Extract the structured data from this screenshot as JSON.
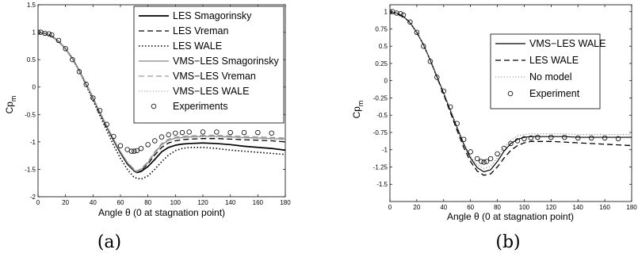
{
  "chart_data": [
    {
      "type": "line",
      "panel_label": "(a)",
      "xlabel": "Angle θ (0 at stagnation point)",
      "ylabel": "Cp",
      "ylabel_sub": "m",
      "xlim": [
        0,
        180
      ],
      "ylim": [
        -2,
        1.5
      ],
      "xticks": [
        "0",
        "20",
        "40",
        "60",
        "80",
        "100",
        "120",
        "140",
        "160",
        "180"
      ],
      "yticks": [
        "-2",
        "-1.5",
        "-1",
        "-0.5",
        "0",
        "0.5",
        "1",
        "1.5"
      ],
      "grid": false,
      "legend_position": "top-right",
      "series": [
        {
          "name": "LES Smagorinsky",
          "color": "#000000",
          "style": "solid-bold",
          "x": [
            0,
            5,
            10,
            15,
            20,
            25,
            30,
            35,
            40,
            45,
            50,
            55,
            60,
            65,
            70,
            72,
            75,
            80,
            85,
            90,
            95,
            100,
            105,
            110,
            120,
            130,
            140,
            150,
            160,
            170,
            180
          ],
          "y": [
            1.0,
            0.98,
            0.93,
            0.83,
            0.7,
            0.52,
            0.3,
            0.05,
            -0.2,
            -0.47,
            -0.72,
            -0.97,
            -1.2,
            -1.4,
            -1.53,
            -1.56,
            -1.54,
            -1.45,
            -1.32,
            -1.18,
            -1.1,
            -1.06,
            -1.04,
            -1.03,
            -1.02,
            -1.03,
            -1.05,
            -1.08,
            -1.1,
            -1.12,
            -1.15
          ]
        },
        {
          "name": "LES Vreman",
          "color": "#000000",
          "style": "dashed",
          "x": [
            0,
            5,
            10,
            15,
            20,
            25,
            30,
            35,
            40,
            45,
            50,
            55,
            60,
            65,
            70,
            72,
            75,
            80,
            85,
            90,
            95,
            100,
            105,
            110,
            120,
            130,
            140,
            150,
            160,
            170,
            180
          ],
          "y": [
            1.0,
            0.98,
            0.93,
            0.83,
            0.7,
            0.52,
            0.3,
            0.05,
            -0.2,
            -0.47,
            -0.72,
            -0.97,
            -1.2,
            -1.4,
            -1.53,
            -1.55,
            -1.52,
            -1.4,
            -1.24,
            -1.1,
            -1.02,
            -0.98,
            -0.96,
            -0.95,
            -0.94,
            -0.94,
            -0.95,
            -0.96,
            -0.97,
            -0.98,
            -1.0
          ]
        },
        {
          "name": "LES WALE",
          "color": "#000000",
          "style": "dotted-bold",
          "x": [
            0,
            5,
            10,
            15,
            20,
            25,
            30,
            35,
            40,
            45,
            50,
            55,
            60,
            65,
            70,
            75,
            80,
            85,
            90,
            95,
            100,
            105,
            110,
            120,
            130,
            140,
            150,
            160,
            170,
            180
          ],
          "y": [
            1.0,
            0.98,
            0.93,
            0.83,
            0.7,
            0.52,
            0.3,
            0.03,
            -0.24,
            -0.52,
            -0.79,
            -1.06,
            -1.3,
            -1.5,
            -1.65,
            -1.68,
            -1.62,
            -1.5,
            -1.36,
            -1.24,
            -1.16,
            -1.12,
            -1.1,
            -1.1,
            -1.12,
            -1.15,
            -1.17,
            -1.19,
            -1.21,
            -1.23
          ]
        },
        {
          "name": "VMS−LES Smagorinsky",
          "color": "#888888",
          "style": "solid",
          "x": [
            0,
            5,
            10,
            15,
            20,
            25,
            30,
            35,
            40,
            45,
            50,
            55,
            60,
            65,
            70,
            72,
            75,
            80,
            85,
            90,
            95,
            100,
            105,
            110,
            120,
            130,
            140,
            150,
            160,
            170,
            180
          ],
          "y": [
            1.0,
            0.98,
            0.93,
            0.83,
            0.7,
            0.52,
            0.3,
            0.05,
            -0.2,
            -0.46,
            -0.71,
            -0.95,
            -1.18,
            -1.38,
            -1.52,
            -1.55,
            -1.51,
            -1.38,
            -1.2,
            -1.05,
            -0.97,
            -0.93,
            -0.92,
            -0.91,
            -0.9,
            -0.9,
            -0.91,
            -0.92,
            -0.93,
            -0.94,
            -0.95
          ]
        },
        {
          "name": "VMS−LES Vreman",
          "color": "#999999",
          "style": "dashed",
          "x": [
            0,
            5,
            10,
            15,
            20,
            25,
            30,
            35,
            40,
            45,
            50,
            55,
            60,
            65,
            70,
            72,
            75,
            80,
            85,
            90,
            95,
            100,
            105,
            110,
            120,
            130,
            140,
            150,
            160,
            170,
            180
          ],
          "y": [
            1.0,
            0.98,
            0.93,
            0.83,
            0.7,
            0.52,
            0.3,
            0.05,
            -0.2,
            -0.46,
            -0.71,
            -0.95,
            -1.18,
            -1.37,
            -1.5,
            -1.53,
            -1.49,
            -1.36,
            -1.18,
            -1.03,
            -0.95,
            -0.91,
            -0.9,
            -0.89,
            -0.88,
            -0.88,
            -0.89,
            -0.9,
            -0.91,
            -0.92,
            -0.93
          ]
        },
        {
          "name": "VMS−LES WALE",
          "color": "#999999",
          "style": "dotted",
          "x": [
            0,
            5,
            10,
            15,
            20,
            25,
            30,
            35,
            40,
            45,
            50,
            55,
            60,
            65,
            70,
            72,
            75,
            80,
            85,
            90,
            95,
            100,
            105,
            110,
            120,
            130,
            140,
            150,
            160,
            170,
            180
          ],
          "y": [
            1.0,
            0.98,
            0.93,
            0.83,
            0.7,
            0.52,
            0.3,
            0.05,
            -0.2,
            -0.46,
            -0.71,
            -0.95,
            -1.18,
            -1.37,
            -1.5,
            -1.53,
            -1.5,
            -1.38,
            -1.2,
            -1.06,
            -0.98,
            -0.94,
            -0.93,
            -0.92,
            -0.91,
            -0.91,
            -0.92,
            -0.93,
            -0.94,
            -0.95,
            -0.96
          ]
        },
        {
          "name": "Experiments",
          "color": "#000000",
          "style": "circles",
          "x": [
            0,
            2,
            5,
            8,
            10,
            15,
            20,
            25,
            30,
            35,
            40,
            45,
            50,
            55,
            60,
            65,
            68,
            70,
            72,
            75,
            80,
            85,
            90,
            95,
            100,
            105,
            110,
            120,
            130,
            140,
            150,
            160,
            170
          ],
          "y": [
            1.0,
            1.0,
            0.98,
            0.97,
            0.95,
            0.85,
            0.7,
            0.5,
            0.28,
            0.05,
            -0.2,
            -0.43,
            -0.68,
            -0.9,
            -1.07,
            -1.14,
            -1.17,
            -1.17,
            -1.16,
            -1.12,
            -1.05,
            -0.98,
            -0.91,
            -0.87,
            -0.84,
            -0.83,
            -0.82,
            -0.82,
            -0.82,
            -0.83,
            -0.83,
            -0.83,
            -0.84
          ]
        }
      ]
    },
    {
      "type": "line",
      "panel_label": "(b)",
      "xlabel": "Angle θ (0 at stagnation point)",
      "ylabel": "Cp",
      "ylabel_sub": "m",
      "xlim": [
        0,
        180
      ],
      "ylim": [
        -1.75,
        1.1
      ],
      "xticks": [
        "0",
        "20",
        "40",
        "60",
        "80",
        "100",
        "120",
        "140",
        "160",
        "180"
      ],
      "yticks": [
        "-1.5",
        "-1.25",
        "-1",
        "-0.75",
        "-0.5",
        "-0.25",
        "0",
        "0.25",
        "0.5",
        "0.75",
        "1"
      ],
      "grid": false,
      "legend_position": "top-right",
      "series": [
        {
          "name": "VMS−LES WALE",
          "color": "#000000",
          "style": "solid",
          "x": [
            0,
            5,
            10,
            15,
            20,
            25,
            30,
            35,
            40,
            45,
            50,
            55,
            60,
            65,
            70,
            75,
            80,
            85,
            90,
            95,
            100,
            105,
            110,
            120,
            130,
            140,
            150,
            160,
            170,
            180
          ],
          "y": [
            1.0,
            0.98,
            0.93,
            0.84,
            0.7,
            0.52,
            0.3,
            0.06,
            -0.18,
            -0.43,
            -0.68,
            -0.92,
            -1.12,
            -1.26,
            -1.32,
            -1.29,
            -1.17,
            -1.02,
            -0.91,
            -0.85,
            -0.82,
            -0.81,
            -0.81,
            -0.81,
            -0.81,
            -0.82,
            -0.82,
            -0.82,
            -0.82,
            -0.82
          ]
        },
        {
          "name": "LES WALE",
          "color": "#000000",
          "style": "dashed",
          "x": [
            0,
            5,
            10,
            15,
            20,
            25,
            30,
            35,
            40,
            45,
            50,
            55,
            60,
            65,
            70,
            75,
            80,
            85,
            90,
            95,
            100,
            105,
            110,
            120,
            130,
            140,
            150,
            160,
            170,
            180
          ],
          "y": [
            1.0,
            0.98,
            0.93,
            0.84,
            0.7,
            0.52,
            0.3,
            0.05,
            -0.2,
            -0.46,
            -0.72,
            -0.97,
            -1.17,
            -1.31,
            -1.37,
            -1.35,
            -1.25,
            -1.12,
            -1.01,
            -0.94,
            -0.9,
            -0.88,
            -0.88,
            -0.88,
            -0.89,
            -0.9,
            -0.91,
            -0.92,
            -0.93,
            -0.94
          ]
        },
        {
          "name": "No model",
          "color": "#888888",
          "style": "dotted",
          "x": [
            0,
            5,
            10,
            15,
            20,
            25,
            30,
            35,
            40,
            45,
            50,
            55,
            60,
            65,
            70,
            75,
            80,
            85,
            90,
            95,
            100,
            105,
            110,
            120,
            130,
            140,
            150,
            160,
            170,
            180
          ],
          "y": [
            1.0,
            0.98,
            0.93,
            0.84,
            0.7,
            0.52,
            0.3,
            0.06,
            -0.18,
            -0.43,
            -0.67,
            -0.9,
            -1.1,
            -1.22,
            -1.27,
            -1.24,
            -1.12,
            -0.97,
            -0.86,
            -0.8,
            -0.78,
            -0.77,
            -0.77,
            -0.77,
            -0.77,
            -0.78,
            -0.78,
            -0.78,
            -0.78,
            -0.78
          ]
        },
        {
          "name": "Experiment",
          "color": "#000000",
          "style": "circles",
          "x": [
            0,
            2,
            5,
            8,
            10,
            15,
            20,
            25,
            30,
            35,
            40,
            45,
            50,
            55,
            60,
            65,
            68,
            70,
            72,
            75,
            80,
            85,
            90,
            95,
            100,
            105,
            110,
            120,
            130,
            140,
            150,
            160,
            170
          ],
          "y": [
            1.0,
            1.0,
            0.98,
            0.97,
            0.95,
            0.85,
            0.7,
            0.5,
            0.28,
            0.05,
            -0.15,
            -0.38,
            -0.62,
            -0.85,
            -1.03,
            -1.13,
            -1.17,
            -1.18,
            -1.17,
            -1.13,
            -1.06,
            -0.98,
            -0.91,
            -0.87,
            -0.84,
            -0.83,
            -0.82,
            -0.82,
            -0.82,
            -0.83,
            -0.83,
            -0.83,
            -0.84
          ]
        }
      ]
    }
  ]
}
